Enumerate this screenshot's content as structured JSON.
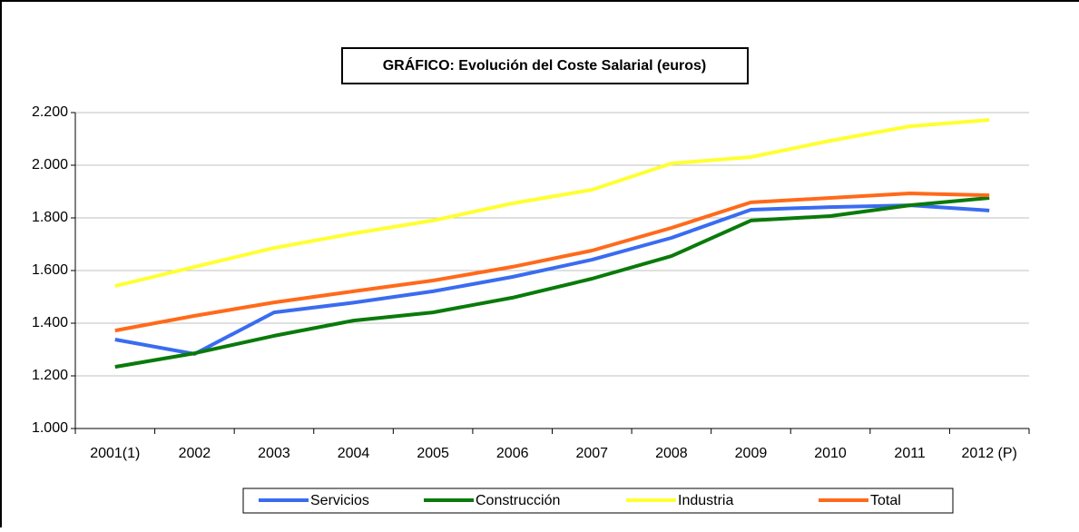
{
  "chart_data": {
    "type": "line",
    "title": "GRÁFICO: Evolución del Coste Salarial (euros)",
    "categories": [
      "2001(1)",
      "2002",
      "2003",
      "2004",
      "2005",
      "2006",
      "2007",
      "2008",
      "2009",
      "2010",
      "2011",
      "2012 (P)"
    ],
    "series": [
      {
        "name": "Servicios",
        "color": "#3a6cf0",
        "values": [
          1338,
          1283,
          1441,
          1478,
          1521,
          1576,
          1641,
          1724,
          1831,
          1841,
          1848,
          1828
        ]
      },
      {
        "name": "Construcción",
        "color": "#0a7a0a",
        "values": [
          1234,
          1286,
          1352,
          1410,
          1441,
          1497,
          1569,
          1655,
          1790,
          1807,
          1848,
          1876
        ]
      },
      {
        "name": "Industria",
        "color": "#ffff33",
        "values": [
          1541,
          1614,
          1686,
          1741,
          1790,
          1855,
          1907,
          2007,
          2031,
          2093,
          2148,
          2172
        ]
      },
      {
        "name": "Total",
        "color": "#ff6a1a",
        "values": [
          1372,
          1428,
          1479,
          1521,
          1562,
          1614,
          1676,
          1762,
          1859,
          1876,
          1893,
          1886
        ]
      }
    ],
    "ylim": [
      1000,
      2200
    ],
    "yticks": [
      {
        "value": 1000,
        "label": "1.000"
      },
      {
        "value": 1200,
        "label": "1.200"
      },
      {
        "value": 1400,
        "label": "1.400"
      },
      {
        "value": 1600,
        "label": "1.600"
      },
      {
        "value": 1800,
        "label": "1.800"
      },
      {
        "value": 2000,
        "label": "2.000"
      },
      {
        "value": 2200,
        "label": "2.200"
      }
    ],
    "grid": true,
    "legend": "bottom"
  }
}
